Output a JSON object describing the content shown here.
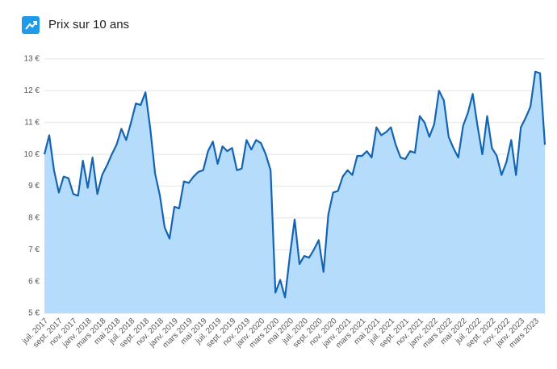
{
  "chart_data": {
    "type": "area",
    "title": "Prix sur 10 ans",
    "categories": [
      "juil. 2017",
      null,
      null,
      "sept. 2017",
      null,
      null,
      "nov. 2017",
      null,
      null,
      "janv. 2018",
      null,
      null,
      "mars 2018",
      null,
      null,
      "mai 2018",
      null,
      null,
      "juil. 2018",
      null,
      null,
      "sept. 2018",
      null,
      null,
      "nov. 2018",
      null,
      null,
      "janv. 2019",
      null,
      null,
      "mars 2019",
      null,
      null,
      "mai 2019",
      null,
      null,
      "juil. 2019",
      null,
      null,
      "sept. 2019",
      null,
      null,
      "nov. 2019",
      null,
      null,
      "janv. 2020",
      null,
      null,
      "mars 2020",
      null,
      null,
      "mai 2020",
      null,
      null,
      "juil. 2020",
      null,
      null,
      "sept. 2020",
      null,
      null,
      "nov. 2020",
      null,
      null,
      "janv. 2021",
      null,
      null,
      "mars 2021",
      null,
      null,
      "mai 2021",
      null,
      null,
      "juil. 2021",
      null,
      null,
      "sept. 2021",
      null,
      null,
      "nov. 2021",
      null,
      null,
      "janv. 2022",
      null,
      null,
      "mars 2022",
      null,
      null,
      "mai 2022",
      null,
      null,
      "juil. 2022",
      null,
      null,
      "sept. 2022",
      null,
      null,
      "nov. 2022",
      null,
      null,
      "janv. 2023",
      null,
      null,
      "mars 2023",
      null,
      null
    ],
    "values": [
      10.0,
      10.6,
      9.5,
      8.8,
      9.3,
      9.25,
      8.75,
      8.7,
      9.8,
      8.95,
      9.9,
      8.75,
      9.35,
      9.65,
      10.0,
      10.3,
      10.8,
      10.45,
      11.0,
      11.6,
      11.55,
      11.95,
      10.8,
      9.4,
      8.7,
      7.7,
      7.35,
      8.35,
      8.3,
      9.15,
      9.1,
      9.3,
      9.45,
      9.5,
      10.1,
      10.4,
      9.7,
      10.25,
      10.1,
      10.2,
      9.5,
      9.55,
      10.45,
      10.15,
      10.45,
      10.35,
      10.0,
      9.5,
      5.65,
      6.05,
      5.5,
      6.8,
      7.95,
      6.55,
      6.8,
      6.75,
      7.0,
      7.3,
      6.3,
      8.1,
      8.8,
      8.85,
      9.3,
      9.5,
      9.35,
      9.95,
      9.95,
      10.1,
      9.9,
      10.85,
      10.6,
      10.7,
      10.85,
      10.3,
      9.9,
      9.85,
      10.1,
      10.05,
      11.2,
      11.0,
      10.55,
      10.95,
      12.0,
      11.7,
      10.55,
      10.2,
      9.9,
      10.9,
      11.3,
      11.9,
      10.9,
      10.0,
      11.2,
      10.2,
      9.95,
      9.35,
      9.75,
      10.45,
      9.35,
      10.85,
      11.15,
      11.5,
      12.6,
      12.55,
      10.3
    ],
    "color": "#1464b4",
    "fill_color": "#b5dcfb",
    "ylim": [
      5,
      13
    ],
    "yticks": [
      {
        "value": 5,
        "label": "5 €"
      },
      {
        "value": 6,
        "label": "6 €"
      },
      {
        "value": 7,
        "label": "7 €"
      },
      {
        "value": 8,
        "label": "8 €"
      },
      {
        "value": 9,
        "label": "9 €"
      },
      {
        "value": 10,
        "label": "10 €"
      },
      {
        "value": 11,
        "label": "11 €"
      },
      {
        "value": 12,
        "label": "12 €"
      },
      {
        "value": 13,
        "label": "13 €"
      }
    ],
    "grid": true
  }
}
